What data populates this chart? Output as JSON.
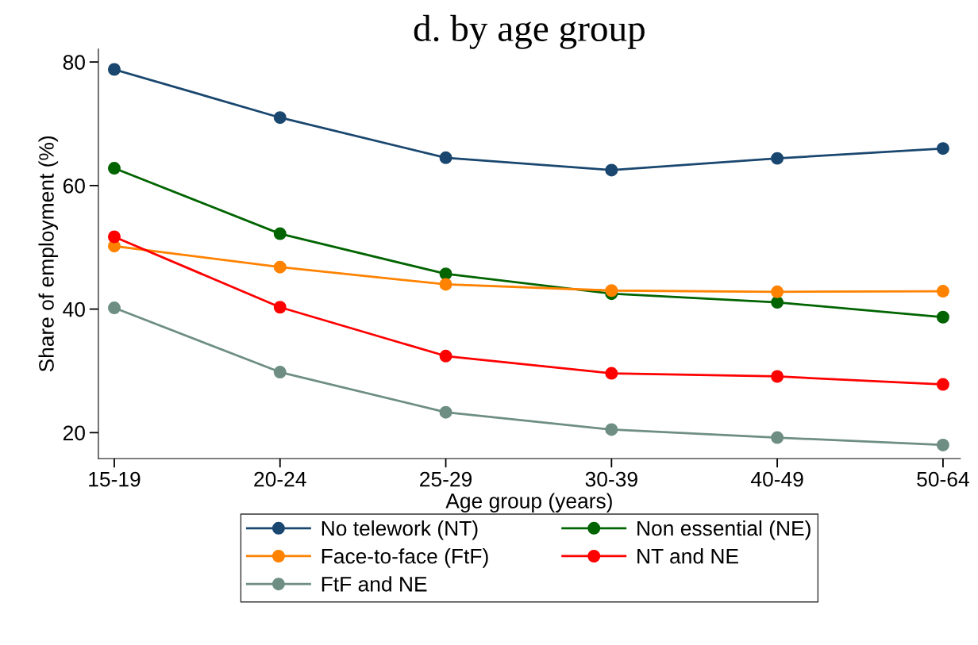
{
  "chart_data": {
    "type": "line",
    "title": "d. by age group",
    "xlabel": "Age group (years)",
    "ylabel": "Share of employment (%)",
    "categories": [
      "15-19",
      "20-24",
      "25-29",
      "30-39",
      "40-49",
      "50-64"
    ],
    "series": [
      {
        "name": "No telework (NT)",
        "color": "#1a476f",
        "values": [
          78.8,
          71.0,
          64.5,
          62.5,
          64.4,
          66.0
        ]
      },
      {
        "name": "Non essential (NE)",
        "color": "#006400",
        "values": [
          62.8,
          52.2,
          45.7,
          42.5,
          41.1,
          38.7
        ]
      },
      {
        "name": "Face-to-face (FtF)",
        "color": "#ff8200",
        "values": [
          50.2,
          46.8,
          44.0,
          43.0,
          42.8,
          42.9
        ]
      },
      {
        "name": "NT and NE",
        "color": "#ff0000",
        "values": [
          51.7,
          40.3,
          32.4,
          29.6,
          29.1,
          27.8
        ]
      },
      {
        "name": "FtF and NE",
        "color": "#6e8e84",
        "values": [
          40.2,
          29.8,
          23.3,
          20.5,
          19.2,
          18.0
        ]
      }
    ],
    "ylim": [
      15.8,
      82.1
    ],
    "yticks": [
      20,
      40,
      60,
      80
    ],
    "grid": false,
    "legend": "bottom",
    "marker": "circle",
    "line_style": "solid"
  }
}
